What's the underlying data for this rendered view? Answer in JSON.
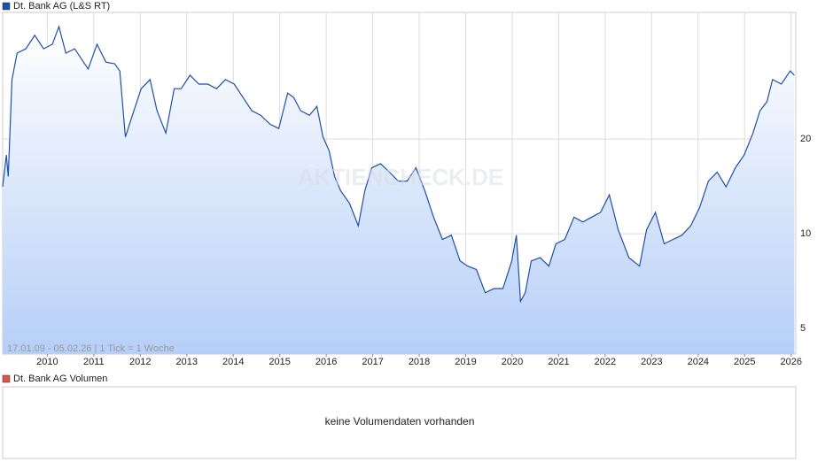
{
  "chart_data": {
    "type": "line",
    "log_scale": true,
    "grid": true,
    "annotation": "17.01.09 - 05.02.26 | 1 Tick = 1 Woche",
    "watermark": "AKTIENCHECK.DE",
    "xlim": [
      2009.04,
      2026.1
    ],
    "xticks": [
      2010,
      2011,
      2012,
      2013,
      2014,
      2015,
      2016,
      2017,
      2018,
      2019,
      2020,
      2021,
      2022,
      2023,
      2024,
      2025,
      2026
    ],
    "ylim": [
      4.15,
      50.5
    ],
    "yticks": [
      5,
      10,
      20
    ],
    "x": [
      2009.04,
      2009.12,
      2009.16,
      2009.24,
      2009.35,
      2009.54,
      2009.73,
      2009.92,
      2010.11,
      2010.25,
      2010.4,
      2010.59,
      2010.78,
      2010.88,
      2011.07,
      2011.26,
      2011.45,
      2011.56,
      2011.68,
      2011.83,
      2012.02,
      2012.21,
      2012.36,
      2012.55,
      2012.73,
      2012.88,
      2013.07,
      2013.26,
      2013.45,
      2013.64,
      2013.83,
      2014.02,
      2014.21,
      2014.4,
      2014.59,
      2014.79,
      2014.98,
      2015.17,
      2015.3,
      2015.45,
      2015.64,
      2015.8,
      2015.93,
      2016.06,
      2016.18,
      2016.31,
      2016.5,
      2016.69,
      2016.83,
      2016.98,
      2017.17,
      2017.36,
      2017.55,
      2017.74,
      2017.93,
      2018.12,
      2018.31,
      2018.5,
      2018.69,
      2018.88,
      2019.04,
      2019.23,
      2019.42,
      2019.61,
      2019.8,
      2019.99,
      2020.09,
      2020.18,
      2020.28,
      2020.41,
      2020.6,
      2020.79,
      2020.94,
      2021.13,
      2021.33,
      2021.52,
      2021.71,
      2021.9,
      2022.09,
      2022.28,
      2022.51,
      2022.74,
      2022.89,
      2023.08,
      2023.27,
      2023.46,
      2023.65,
      2023.84,
      2024.03,
      2024.22,
      2024.41,
      2024.6,
      2024.8,
      2024.99,
      2025.18,
      2025.33,
      2025.48,
      2025.6,
      2025.79,
      2025.98,
      2026.07
    ],
    "series": [
      {
        "name": "Dt. Bank AG (L&S RT)",
        "color": "#1f4fa8",
        "values": [
          14.1,
          17.8,
          15.2,
          30.9,
          37.5,
          38.7,
          42.7,
          38.7,
          40,
          45.5,
          37.5,
          38.7,
          35.1,
          33.4,
          40,
          35.1,
          34.7,
          32.9,
          20.3,
          23.8,
          28.9,
          30.9,
          24.6,
          20.9,
          28.9,
          28.9,
          31.9,
          29.9,
          29.9,
          28.9,
          30.9,
          29.9,
          27.1,
          24.6,
          23.8,
          22.3,
          21.6,
          28.0,
          27.1,
          24.6,
          23.8,
          25.4,
          20.3,
          18.4,
          15.2,
          13.7,
          12.5,
          10.6,
          13.7,
          16.2,
          16.7,
          15.7,
          14.7,
          14.7,
          16.2,
          13.7,
          11.3,
          9.6,
          9.9,
          8.2,
          7.9,
          7.7,
          6.5,
          6.7,
          6.7,
          8.2,
          9.9,
          6.1,
          6.5,
          8.2,
          8.4,
          7.9,
          9.3,
          9.6,
          11.3,
          10.9,
          11.3,
          11.7,
          13.3,
          10.3,
          8.4,
          7.9,
          10.3,
          11.7,
          9.3,
          9.6,
          9.9,
          10.6,
          12.1,
          14.7,
          15.7,
          14.1,
          16.2,
          17.8,
          20.9,
          24.6,
          26.3,
          30.9,
          29.9,
          32.9,
          31.9
        ]
      }
    ]
  },
  "volume_panel": {
    "legend": "Dt. Bank AG Volumen",
    "color": "#d9534f",
    "message": "keine Volumendaten vorhanden"
  }
}
